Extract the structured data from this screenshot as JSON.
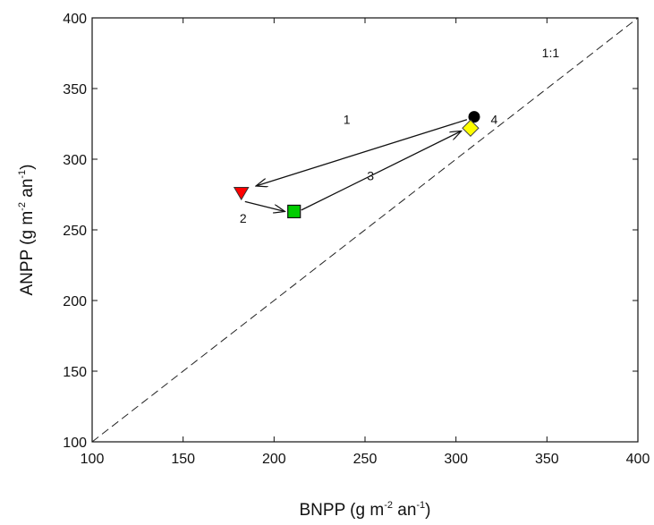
{
  "chart_data": {
    "type": "scatter",
    "xlabel": {
      "base": "BNPP (g m",
      "sup1": "-2",
      "mid": " an",
      "sup2": "-1",
      "end": ")"
    },
    "ylabel": {
      "base": "ANPP (g m",
      "sup1": "-2",
      "mid": " an",
      "sup2": "-1",
      "end": ")"
    },
    "xlim": [
      100,
      400
    ],
    "ylim": [
      100,
      400
    ],
    "xticks": [
      100,
      150,
      200,
      250,
      300,
      350,
      400
    ],
    "yticks": [
      100,
      150,
      200,
      250,
      300,
      350,
      400
    ],
    "grid": false,
    "reference_line": {
      "label": "1:1",
      "from": [
        100,
        100
      ],
      "to": [
        400,
        400
      ],
      "style": "dashed"
    },
    "points": [
      {
        "x": 310,
        "y": 330,
        "marker": "circle",
        "color": "#000000"
      },
      {
        "x": 308,
        "y": 322,
        "marker": "diamond",
        "color": "#ffff00"
      },
      {
        "x": 182,
        "y": 276,
        "marker": "triangle-down",
        "color": "#ff0000"
      },
      {
        "x": 211,
        "y": 263,
        "marker": "square",
        "color": "#00cc00"
      }
    ],
    "arrows": [
      {
        "label": "1",
        "from": [
          306,
          328
        ],
        "to": [
          190,
          281
        ],
        "label_at": [
          240,
          325
        ]
      },
      {
        "label": "2",
        "from": [
          184,
          270
        ],
        "to": [
          206,
          263
        ],
        "label_at": [
          183,
          255
        ]
      },
      {
        "label": "3",
        "from": [
          215,
          264
        ],
        "to": [
          303,
          320
        ],
        "label_at": [
          253,
          285
        ]
      },
      {
        "label": "4",
        "from": null,
        "to": null,
        "label_at": [
          321,
          325
        ]
      }
    ],
    "annotation_1to1_at": [
      352,
      372
    ]
  }
}
